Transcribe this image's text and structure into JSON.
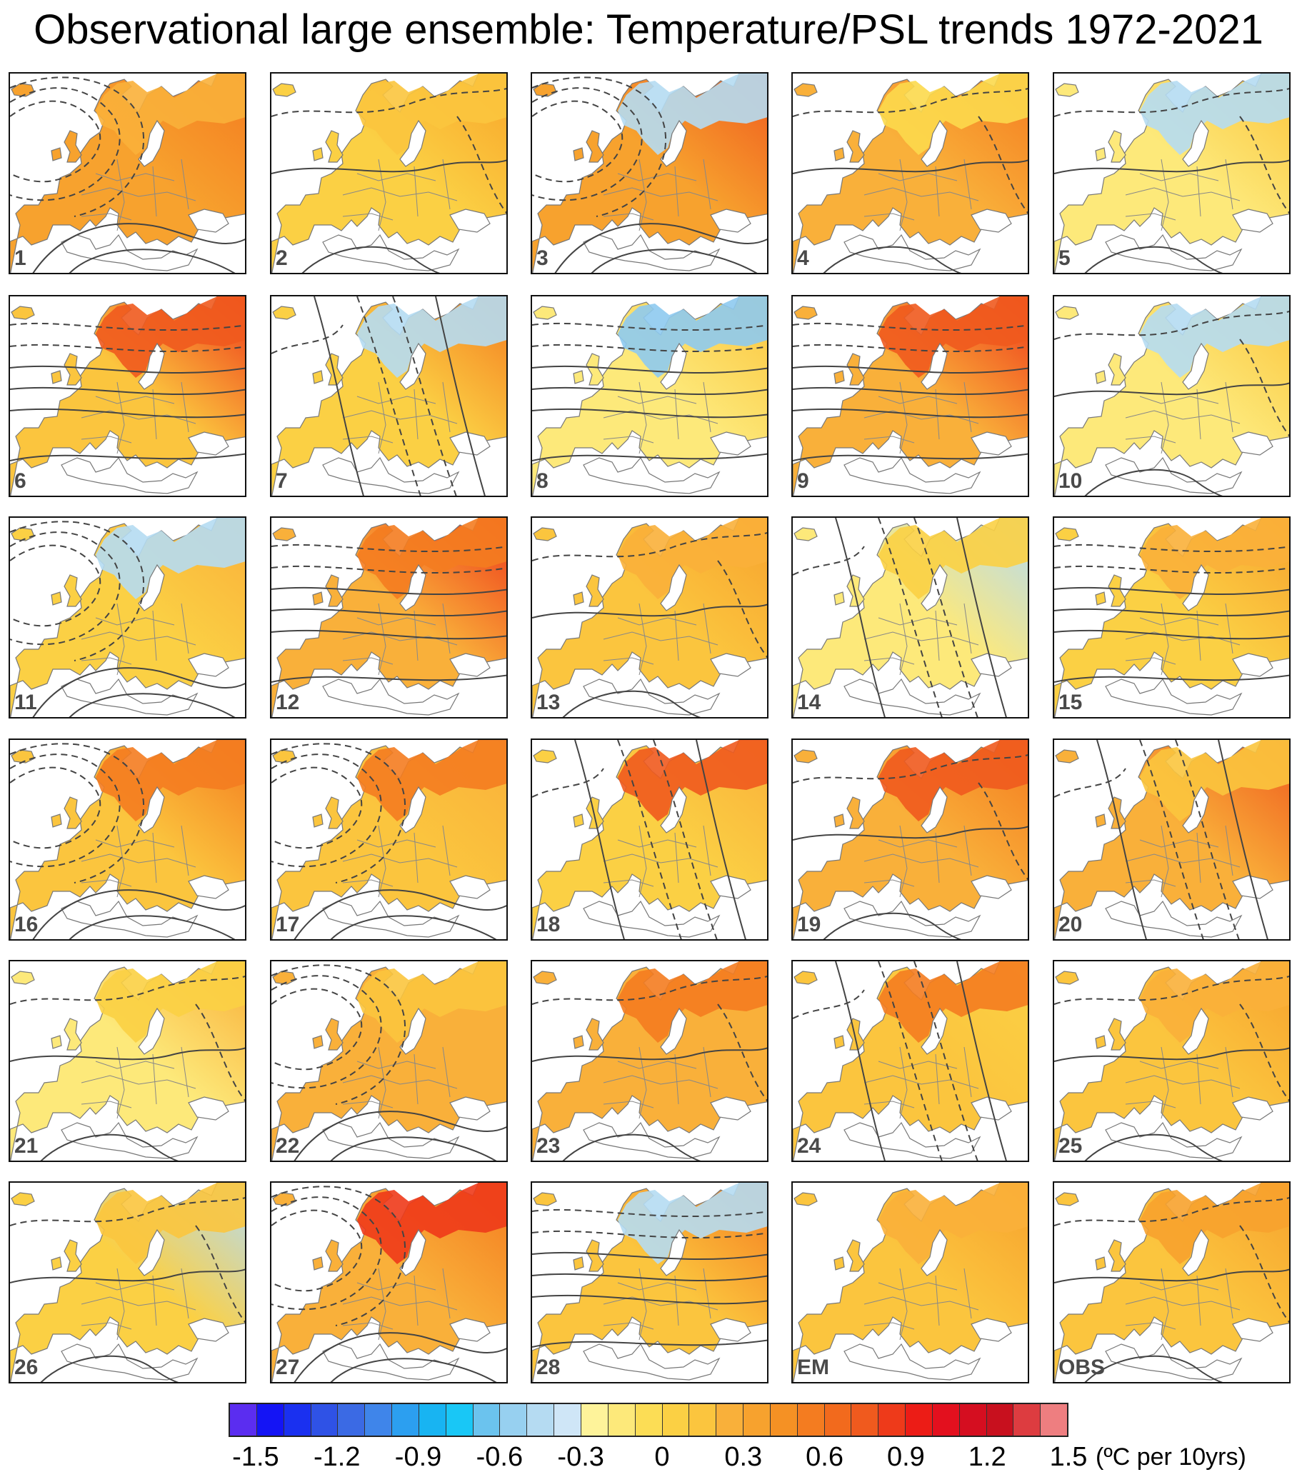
{
  "title": "Observational large ensemble: Temperature/PSL trends 1972-2021",
  "panels": [
    {
      "label": "1",
      "base": "#f7a22e",
      "north": "#f9b03a",
      "east": "#f47c20",
      "psl": "low-west"
    },
    {
      "label": "2",
      "base": "#fbd044",
      "north": "#fbc53e",
      "east": "#f8a52a",
      "psl": "weak"
    },
    {
      "label": "3",
      "base": "#f7a22e",
      "north": "#b5dbf2",
      "east": "#ef5b1e",
      "psl": "low-west"
    },
    {
      "label": "4",
      "base": "#f9b03a",
      "north": "#fcd94d",
      "east": "#f47c20",
      "psl": "weak"
    },
    {
      "label": "5",
      "base": "#fde97a",
      "north": "#b5dbf2",
      "east": "#fbc53e",
      "psl": "weak"
    },
    {
      "label": "6",
      "base": "#fbc53e",
      "north": "#f05a1e",
      "east": "#ee3a1a",
      "psl": "zonal"
    },
    {
      "label": "7",
      "base": "#fbd044",
      "north": "#b5dbf2",
      "east": "#f47c20",
      "psl": "meridional"
    },
    {
      "label": "8",
      "base": "#fde97a",
      "north": "#8ecaef",
      "east": "#fbc53e",
      "psl": "zonal"
    },
    {
      "label": "9",
      "base": "#f9b03a",
      "north": "#f05a1e",
      "east": "#ee3a1a",
      "psl": "zonal"
    },
    {
      "label": "10",
      "base": "#fde97a",
      "north": "#b5dbf2",
      "east": "#fbc53e",
      "psl": "weak"
    },
    {
      "label": "11",
      "base": "#fbd044",
      "north": "#b5dbf2",
      "east": "#f9b03a",
      "psl": "low-west"
    },
    {
      "label": "12",
      "base": "#f9b03a",
      "north": "#f47c20",
      "east": "#ee3a1a",
      "psl": "zonal"
    },
    {
      "label": "13",
      "base": "#fbc53e",
      "north": "#f9b03a",
      "east": "#f7a22e",
      "psl": "weak"
    },
    {
      "label": "14",
      "base": "#fde97a",
      "north": "#fbd044",
      "east": "#b5dbf2",
      "psl": "meridional"
    },
    {
      "label": "15",
      "base": "#fbd044",
      "north": "#f9b03a",
      "east": "#f7a22e",
      "psl": "zonal"
    },
    {
      "label": "16",
      "base": "#fbc53e",
      "north": "#f47c20",
      "east": "#f47c20",
      "psl": "low-west"
    },
    {
      "label": "17",
      "base": "#fbc53e",
      "north": "#f47c20",
      "east": "#f9b03a",
      "psl": "low-west"
    },
    {
      "label": "18",
      "base": "#fbd044",
      "north": "#f05a1e",
      "east": "#f9b03a",
      "psl": "meridional"
    },
    {
      "label": "19",
      "base": "#f9b03a",
      "north": "#f05a1e",
      "east": "#f47c20",
      "psl": "weak"
    },
    {
      "label": "20",
      "base": "#f9b03a",
      "north": "#fbc53e",
      "east": "#ef5b1e",
      "psl": "meridional"
    },
    {
      "label": "21",
      "base": "#fde97a",
      "north": "#fbd044",
      "east": "#f9b03a",
      "psl": "weak"
    },
    {
      "label": "22",
      "base": "#f9b03a",
      "north": "#fbc53e",
      "east": "#f9b03a",
      "psl": "low-west"
    },
    {
      "label": "23",
      "base": "#f9b03a",
      "north": "#f47c20",
      "east": "#f9b03a",
      "psl": "weak"
    },
    {
      "label": "24",
      "base": "#fbc53e",
      "north": "#f47c20",
      "east": "#fbd044",
      "psl": "meridional"
    },
    {
      "label": "25",
      "base": "#fbc53e",
      "north": "#f9b03a",
      "east": "#f7a22e",
      "psl": "weak"
    },
    {
      "label": "26",
      "base": "#fbd044",
      "north": "#fbc53e",
      "east": "#b5dbf2",
      "psl": "weak"
    },
    {
      "label": "27",
      "base": "#f9b03a",
      "north": "#ee3a1a",
      "east": "#f47c20",
      "psl": "low-west"
    },
    {
      "label": "28",
      "base": "#fbc53e",
      "north": "#b5dbf2",
      "east": "#f47c20",
      "psl": "zonal"
    },
    {
      "label": "EM",
      "base": "#fbc53e",
      "north": "#f9b03a",
      "east": "#f7a22e",
      "psl": "none"
    },
    {
      "label": "OBS",
      "base": "#fbc53e",
      "north": "#f7a22e",
      "east": "#f7a22e",
      "psl": "weak"
    }
  ],
  "colorbar": {
    "colors": [
      "#5b2df0",
      "#1414f5",
      "#1a30f0",
      "#2f52e6",
      "#3b6ae4",
      "#3f85ea",
      "#2c9ff0",
      "#18b4f2",
      "#19c7f6",
      "#6bc3ee",
      "#97d0f0",
      "#b5dbf2",
      "#cfe6f7",
      "#fef39a",
      "#fde97a",
      "#fcdd55",
      "#fbd044",
      "#fbc53e",
      "#f9b03a",
      "#f7a22e",
      "#f59124",
      "#f47c20",
      "#f26a1d",
      "#f05a1e",
      "#ee3a1a",
      "#ec1c16",
      "#e3101e",
      "#d50e20",
      "#c8101e",
      "#dd3c40",
      "#ee7e80"
    ],
    "ticks": [
      "-1.5",
      "-1.2",
      "-0.9",
      "-0.6",
      "-0.3",
      "0",
      "0.3",
      "0.6",
      "0.9",
      "1.2",
      "1.5"
    ],
    "units": "(ºC per 10yrs)"
  }
}
